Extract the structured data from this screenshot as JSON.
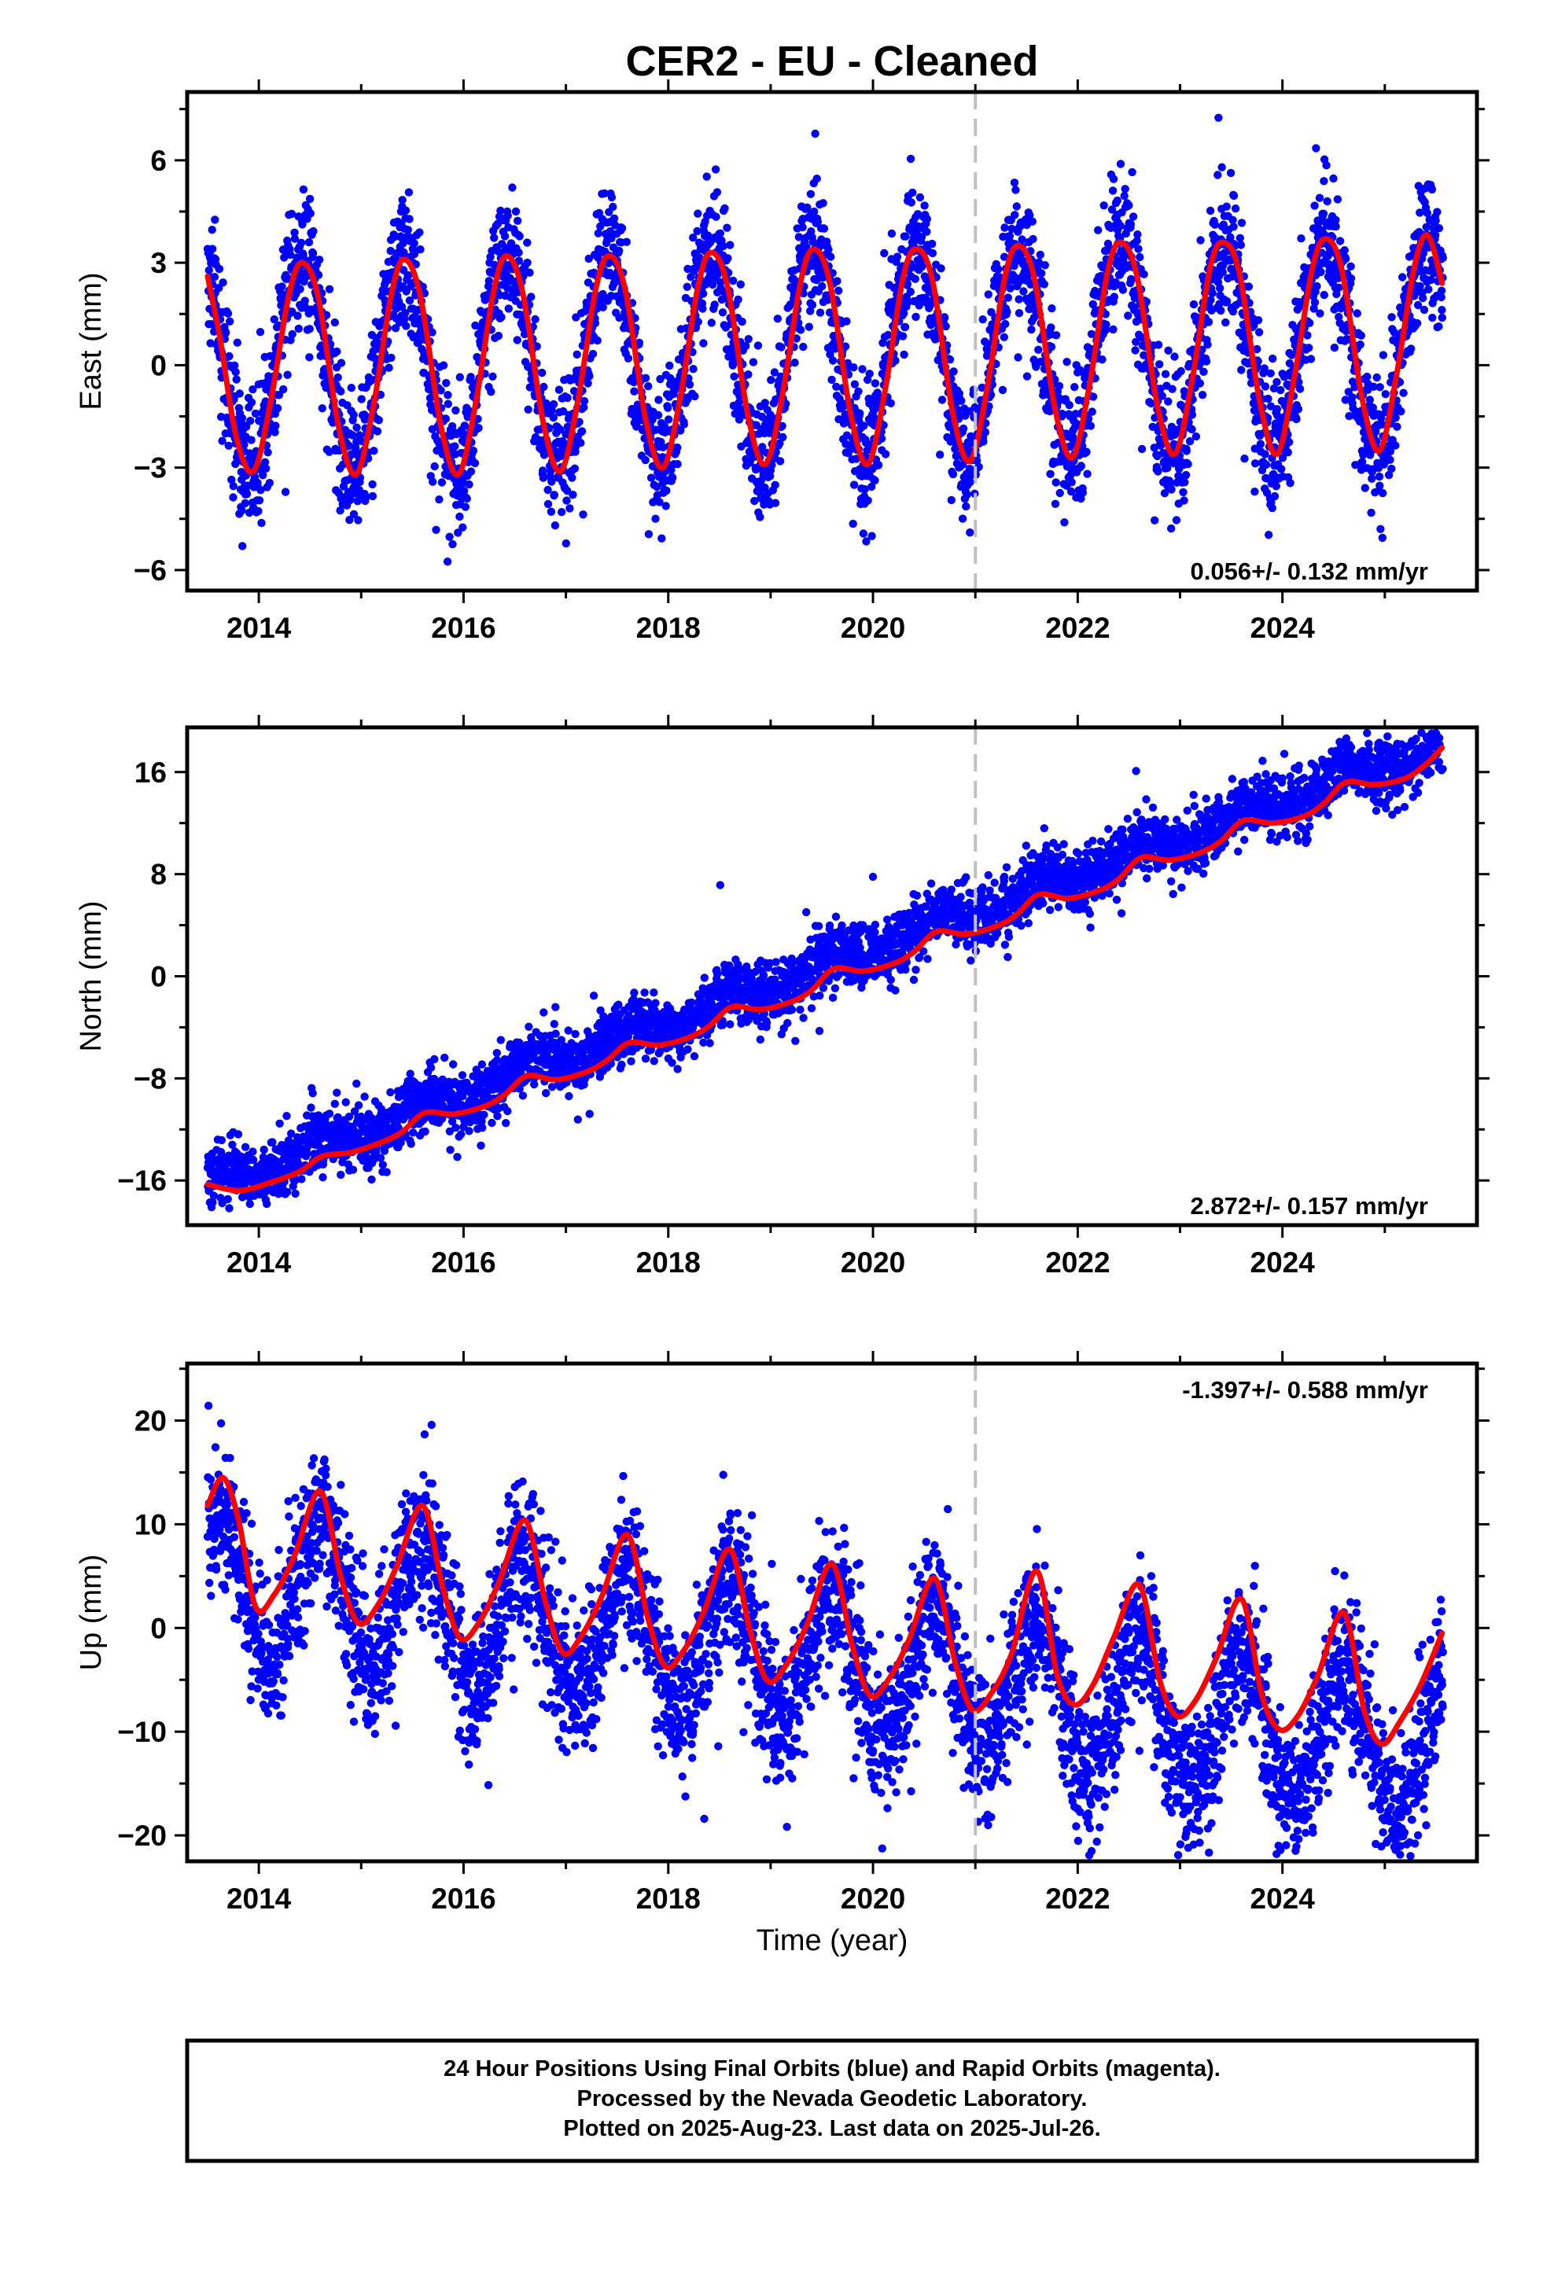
{
  "title": "CER2  - EU - Cleaned",
  "colors": {
    "points": "#0000ff",
    "fit": "#ff0000",
    "vline": "#c0c0c0",
    "frame": "#000000"
  },
  "chart_data": [
    {
      "type": "scatter",
      "name": "east",
      "ylabel": "East (mm)",
      "xlim": [
        2013.3,
        2025.9
      ],
      "ylim": [
        -6.6,
        8.0
      ],
      "yticks": [
        6,
        3,
        0,
        -3,
        -6
      ],
      "xticks": [
        2014,
        2016,
        2018,
        2020,
        2022,
        2024
      ],
      "vline_x": 2021.0,
      "rate_label": "0.056+/- 0.132 mm/yr",
      "series": [
        {
          "name": "",
          "kind": "points",
          "model": {
            "trend": 0.056,
            "offset": 0.0,
            "annual_amp": 3.1,
            "annual_phase_peak": 0.42,
            "noise_sd": 1.0
          }
        },
        {
          "name": "",
          "kind": "fit",
          "x": [
            2013.5,
            2013.62,
            2013.78,
            2013.95,
            2014.12,
            2014.29,
            2014.42,
            2014.58,
            2014.78,
            2014.95,
            2015.12,
            2015.29,
            2015.42,
            2015.58,
            2015.78,
            2015.95,
            2016.12,
            2016.29,
            2016.42,
            2016.58,
            2016.78,
            2016.95,
            2017.12,
            2017.29,
            2017.42,
            2017.58,
            2017.78,
            2017.95,
            2018.12,
            2018.29,
            2018.42,
            2018.58,
            2018.78,
            2018.95,
            2019.12,
            2019.29,
            2019.42,
            2019.58,
            2019.78,
            2019.95,
            2020.12,
            2020.29,
            2020.42,
            2020.58,
            2020.78,
            2020.95,
            2021.12,
            2021.29,
            2021.42,
            2021.58,
            2021.78,
            2021.95,
            2022.12,
            2022.29,
            2022.42,
            2022.58,
            2022.78,
            2022.95,
            2023.12,
            2023.29,
            2023.42,
            2023.58,
            2023.78,
            2023.95,
            2024.12,
            2024.29,
            2024.42,
            2024.58,
            2024.78,
            2024.95,
            2025.12,
            2025.29,
            2025.42,
            2025.56
          ],
          "values": [
            2.6,
            0.8,
            -2.1,
            -3.1,
            -1.0,
            2.0,
            3.0,
            2.0,
            -1.8,
            -3.2,
            -1.2,
            2.0,
            3.1,
            2.0,
            -1.8,
            -3.2,
            -1.1,
            2.1,
            3.2,
            2.1,
            -1.7,
            -3.1,
            -1.0,
            2.2,
            3.2,
            2.2,
            -1.6,
            -3.0,
            -0.9,
            2.3,
            3.3,
            2.3,
            -1.5,
            -2.9,
            -0.8,
            2.4,
            3.4,
            2.4,
            -1.4,
            -2.9,
            -0.7,
            2.5,
            3.4,
            2.5,
            -1.4,
            -2.8,
            -0.6,
            2.6,
            3.5,
            2.5,
            -1.3,
            -2.7,
            -0.5,
            2.7,
            3.6,
            2.6,
            -1.2,
            -2.6,
            -0.4,
            2.8,
            3.6,
            2.7,
            -1.1,
            -2.6,
            -0.3,
            2.8,
            3.7,
            2.8,
            -1.0,
            -2.5,
            -0.2,
            2.9,
            3.8,
            2.4
          ]
        }
      ]
    },
    {
      "type": "scatter",
      "name": "north",
      "ylabel": "North (mm)",
      "xlim": [
        2013.3,
        2025.9
      ],
      "ylim": [
        -19.5,
        19.5
      ],
      "yticks": [
        16,
        8,
        0,
        -8,
        -16
      ],
      "xticks": [
        2014,
        2016,
        2018,
        2020,
        2022,
        2024
      ],
      "vline_x": 2021.0,
      "rate_label": "2.872+/- 0.157 mm/yr",
      "series": [
        {
          "name": "",
          "kind": "points",
          "model": {
            "trend": 2.872,
            "offset": -16.5,
            "annual_amp": 0.8,
            "annual_phase_peak": 0.62,
            "noise_sd": 1.2
          }
        },
        {
          "name": "",
          "kind": "fit",
          "x": [
            2013.5,
            2013.8,
            2014.1,
            2014.4,
            2014.62,
            2014.9,
            2015.2,
            2015.4,
            2015.62,
            2015.9,
            2016.2,
            2016.4,
            2016.62,
            2016.9,
            2017.2,
            2017.4,
            2017.62,
            2017.9,
            2018.2,
            2018.4,
            2018.62,
            2018.9,
            2019.2,
            2019.4,
            2019.62,
            2019.9,
            2020.2,
            2020.4,
            2020.62,
            2020.9,
            2021.2,
            2021.4,
            2021.62,
            2021.9,
            2022.2,
            2022.4,
            2022.62,
            2022.9,
            2023.2,
            2023.4,
            2023.62,
            2023.9,
            2024.2,
            2024.4,
            2024.62,
            2024.9,
            2025.2,
            2025.4,
            2025.56
          ],
          "values": [
            -16.3,
            -16.8,
            -16.2,
            -15.3,
            -14.1,
            -13.8,
            -13.0,
            -12.2,
            -10.7,
            -10.8,
            -10.2,
            -9.3,
            -7.8,
            -8.1,
            -7.5,
            -6.6,
            -5.2,
            -5.4,
            -4.8,
            -3.9,
            -2.4,
            -2.6,
            -2.0,
            -1.1,
            0.6,
            0.4,
            1.0,
            1.9,
            3.5,
            3.3,
            3.9,
            4.8,
            6.4,
            6.1,
            6.7,
            7.6,
            9.3,
            9.1,
            9.7,
            10.6,
            12.2,
            12.0,
            12.5,
            13.5,
            15.2,
            15.0,
            15.5,
            16.6,
            17.9
          ]
        }
      ]
    },
    {
      "type": "scatter",
      "name": "up",
      "ylabel": "Up (mm)",
      "xlim": [
        2013.3,
        2025.9
      ],
      "ylim": [
        -22.5,
        25.5
      ],
      "yticks": [
        20,
        10,
        0,
        -10,
        -20
      ],
      "xticks": [
        2014,
        2016,
        2018,
        2020,
        2022,
        2024
      ],
      "vline_x": 2021.0,
      "rate_label": "-1.397+/- 0.588 mm/yr",
      "series": [
        {
          "name": "",
          "kind": "points",
          "model": {
            "trend": -1.397,
            "offset": 5.0,
            "annual_amp": 6.5,
            "annual_phase_peak": 0.6,
            "noise_sd": 3.6
          }
        },
        {
          "name": "",
          "kind": "fit",
          "x": [
            2013.5,
            2013.65,
            2013.8,
            2013.97,
            2014.15,
            2014.35,
            2014.6,
            2014.8,
            2014.97,
            2015.15,
            2015.35,
            2015.6,
            2015.8,
            2015.97,
            2016.15,
            2016.35,
            2016.6,
            2016.8,
            2016.97,
            2017.15,
            2017.35,
            2017.6,
            2017.8,
            2017.97,
            2018.15,
            2018.35,
            2018.6,
            2018.8,
            2018.97,
            2019.15,
            2019.35,
            2019.6,
            2019.8,
            2019.97,
            2020.15,
            2020.35,
            2020.6,
            2020.8,
            2020.97,
            2021.15,
            2021.35,
            2021.6,
            2021.8,
            2021.97,
            2022.15,
            2022.35,
            2022.6,
            2022.8,
            2022.97,
            2023.15,
            2023.35,
            2023.6,
            2023.8,
            2023.97,
            2024.15,
            2024.35,
            2024.6,
            2024.8,
            2024.97,
            2025.15,
            2025.35,
            2025.56
          ],
          "values": [
            11.8,
            14.5,
            10.5,
            2.0,
            3.2,
            7.0,
            13.2,
            5.0,
            0.5,
            2.0,
            6.0,
            11.8,
            3.8,
            -1.0,
            0.5,
            4.5,
            10.4,
            2.5,
            -2.4,
            -0.8,
            3.0,
            9.0,
            1.0,
            -3.7,
            -2.2,
            1.6,
            7.6,
            -0.3,
            -5.1,
            -3.6,
            0.2,
            6.2,
            -1.8,
            -6.5,
            -5.0,
            -1.2,
            4.8,
            -3.2,
            -7.9,
            -6.4,
            -2.6,
            5.5,
            -4.6,
            -7.4,
            -5.5,
            -1.0,
            4.2,
            -5.0,
            -8.5,
            -7.0,
            -3.0,
            2.8,
            -6.5,
            -9.8,
            -8.5,
            -4.5,
            1.5,
            -8.0,
            -11.2,
            -9.0,
            -5.5,
            -0.5
          ]
        }
      ]
    }
  ],
  "xlabel": "Time (year)",
  "footer": {
    "line1": "24 Hour Positions Using Final Orbits (blue) and Rapid Orbits (magenta).",
    "line2": "Processed by the Nevada Geodetic Laboratory.",
    "line3": "Plotted on 2025-Aug-23. Last data on 2025-Jul-26."
  }
}
